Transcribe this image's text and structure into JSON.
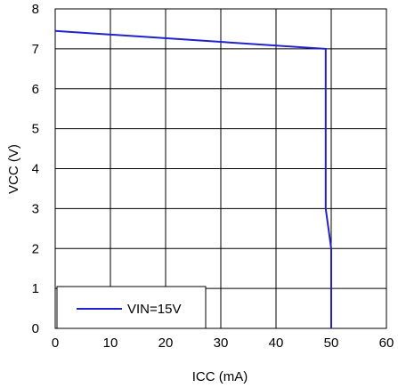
{
  "chart_data": {
    "type": "line",
    "xlabel": "ICC (mA)",
    "ylabel": "VCC (V)",
    "xlim": [
      0,
      60
    ],
    "ylim": [
      0,
      8
    ],
    "x_ticks": [
      "0",
      "10",
      "20",
      "30",
      "40",
      "50",
      "60"
    ],
    "y_ticks": [
      "0",
      "1",
      "2",
      "3",
      "4",
      "5",
      "6",
      "7",
      "8"
    ],
    "grid": true,
    "legend_position": "bottom-left",
    "series": [
      {
        "name": "VIN=15V",
        "color": "#2222cc",
        "x": [
          0,
          49,
          49,
          50,
          50
        ],
        "y": [
          7.45,
          7.0,
          3.0,
          2.0,
          0.0
        ]
      }
    ]
  }
}
